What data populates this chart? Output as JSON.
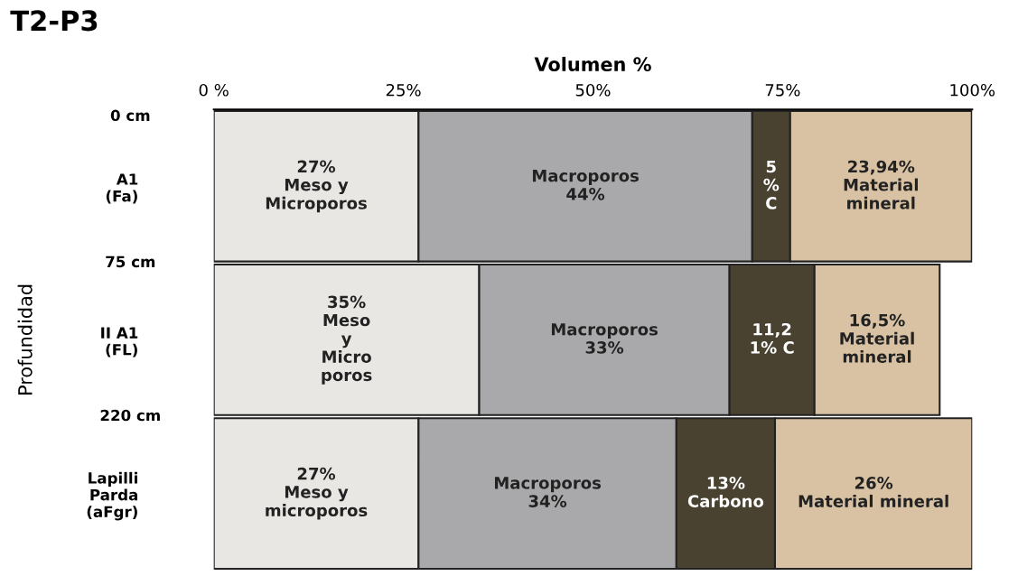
{
  "chart_data": {
    "type": "bar",
    "orientation": "horizontal",
    "stacked": true,
    "title": "T2-P3",
    "xlabel": "Volumen %",
    "ylabel": "Profundidad",
    "categories": [
      "A1\n(Fa)",
      "II A1\n(FL)",
      "Lapilli\nParda\n(aFgr)"
    ],
    "series": [
      {
        "color": "#e9e7e4",
        "values": [
          27,
          35,
          27
        ],
        "value_labels": [
          "27%\nMeso y\nMicroporos",
          "35%\nMeso\ny\nMicro\nporos",
          "27%\nMeso y\nmicroporos"
        ]
      },
      {
        "color": "#a9a9ab",
        "values": [
          44,
          33,
          34
        ],
        "value_labels": [
          "Macroporos\n44%",
          "Macroporos\n33%",
          "Macroporos\n34%"
        ]
      },
      {
        "color": "#4a4230",
        "values": [
          5,
          11.21,
          13
        ],
        "value_labels": [
          "5\n%\nC",
          "11,2\n1% C",
          "13%\nCarbono"
        ]
      },
      {
        "color": "#d8c2a3",
        "values": [
          23.94,
          16.5,
          26
        ],
        "value_labels": [
          "23,94%\nMaterial\nmineral",
          "16,5%\nMaterial\nmineral",
          "26%\nMaterial mineral"
        ]
      }
    ],
    "xlim": [
      0,
      100
    ],
    "xticks": [
      {
        "value": 0,
        "label": "0 %"
      },
      {
        "value": 25,
        "label": "25%"
      },
      {
        "value": 50,
        "label": "50%"
      },
      {
        "value": 75,
        "label": "75%"
      },
      {
        "value": 100,
        "label": "100%"
      }
    ],
    "annotations": [
      "0 cm",
      "75 cm",
      "220 cm"
    ],
    "grid": false
  }
}
